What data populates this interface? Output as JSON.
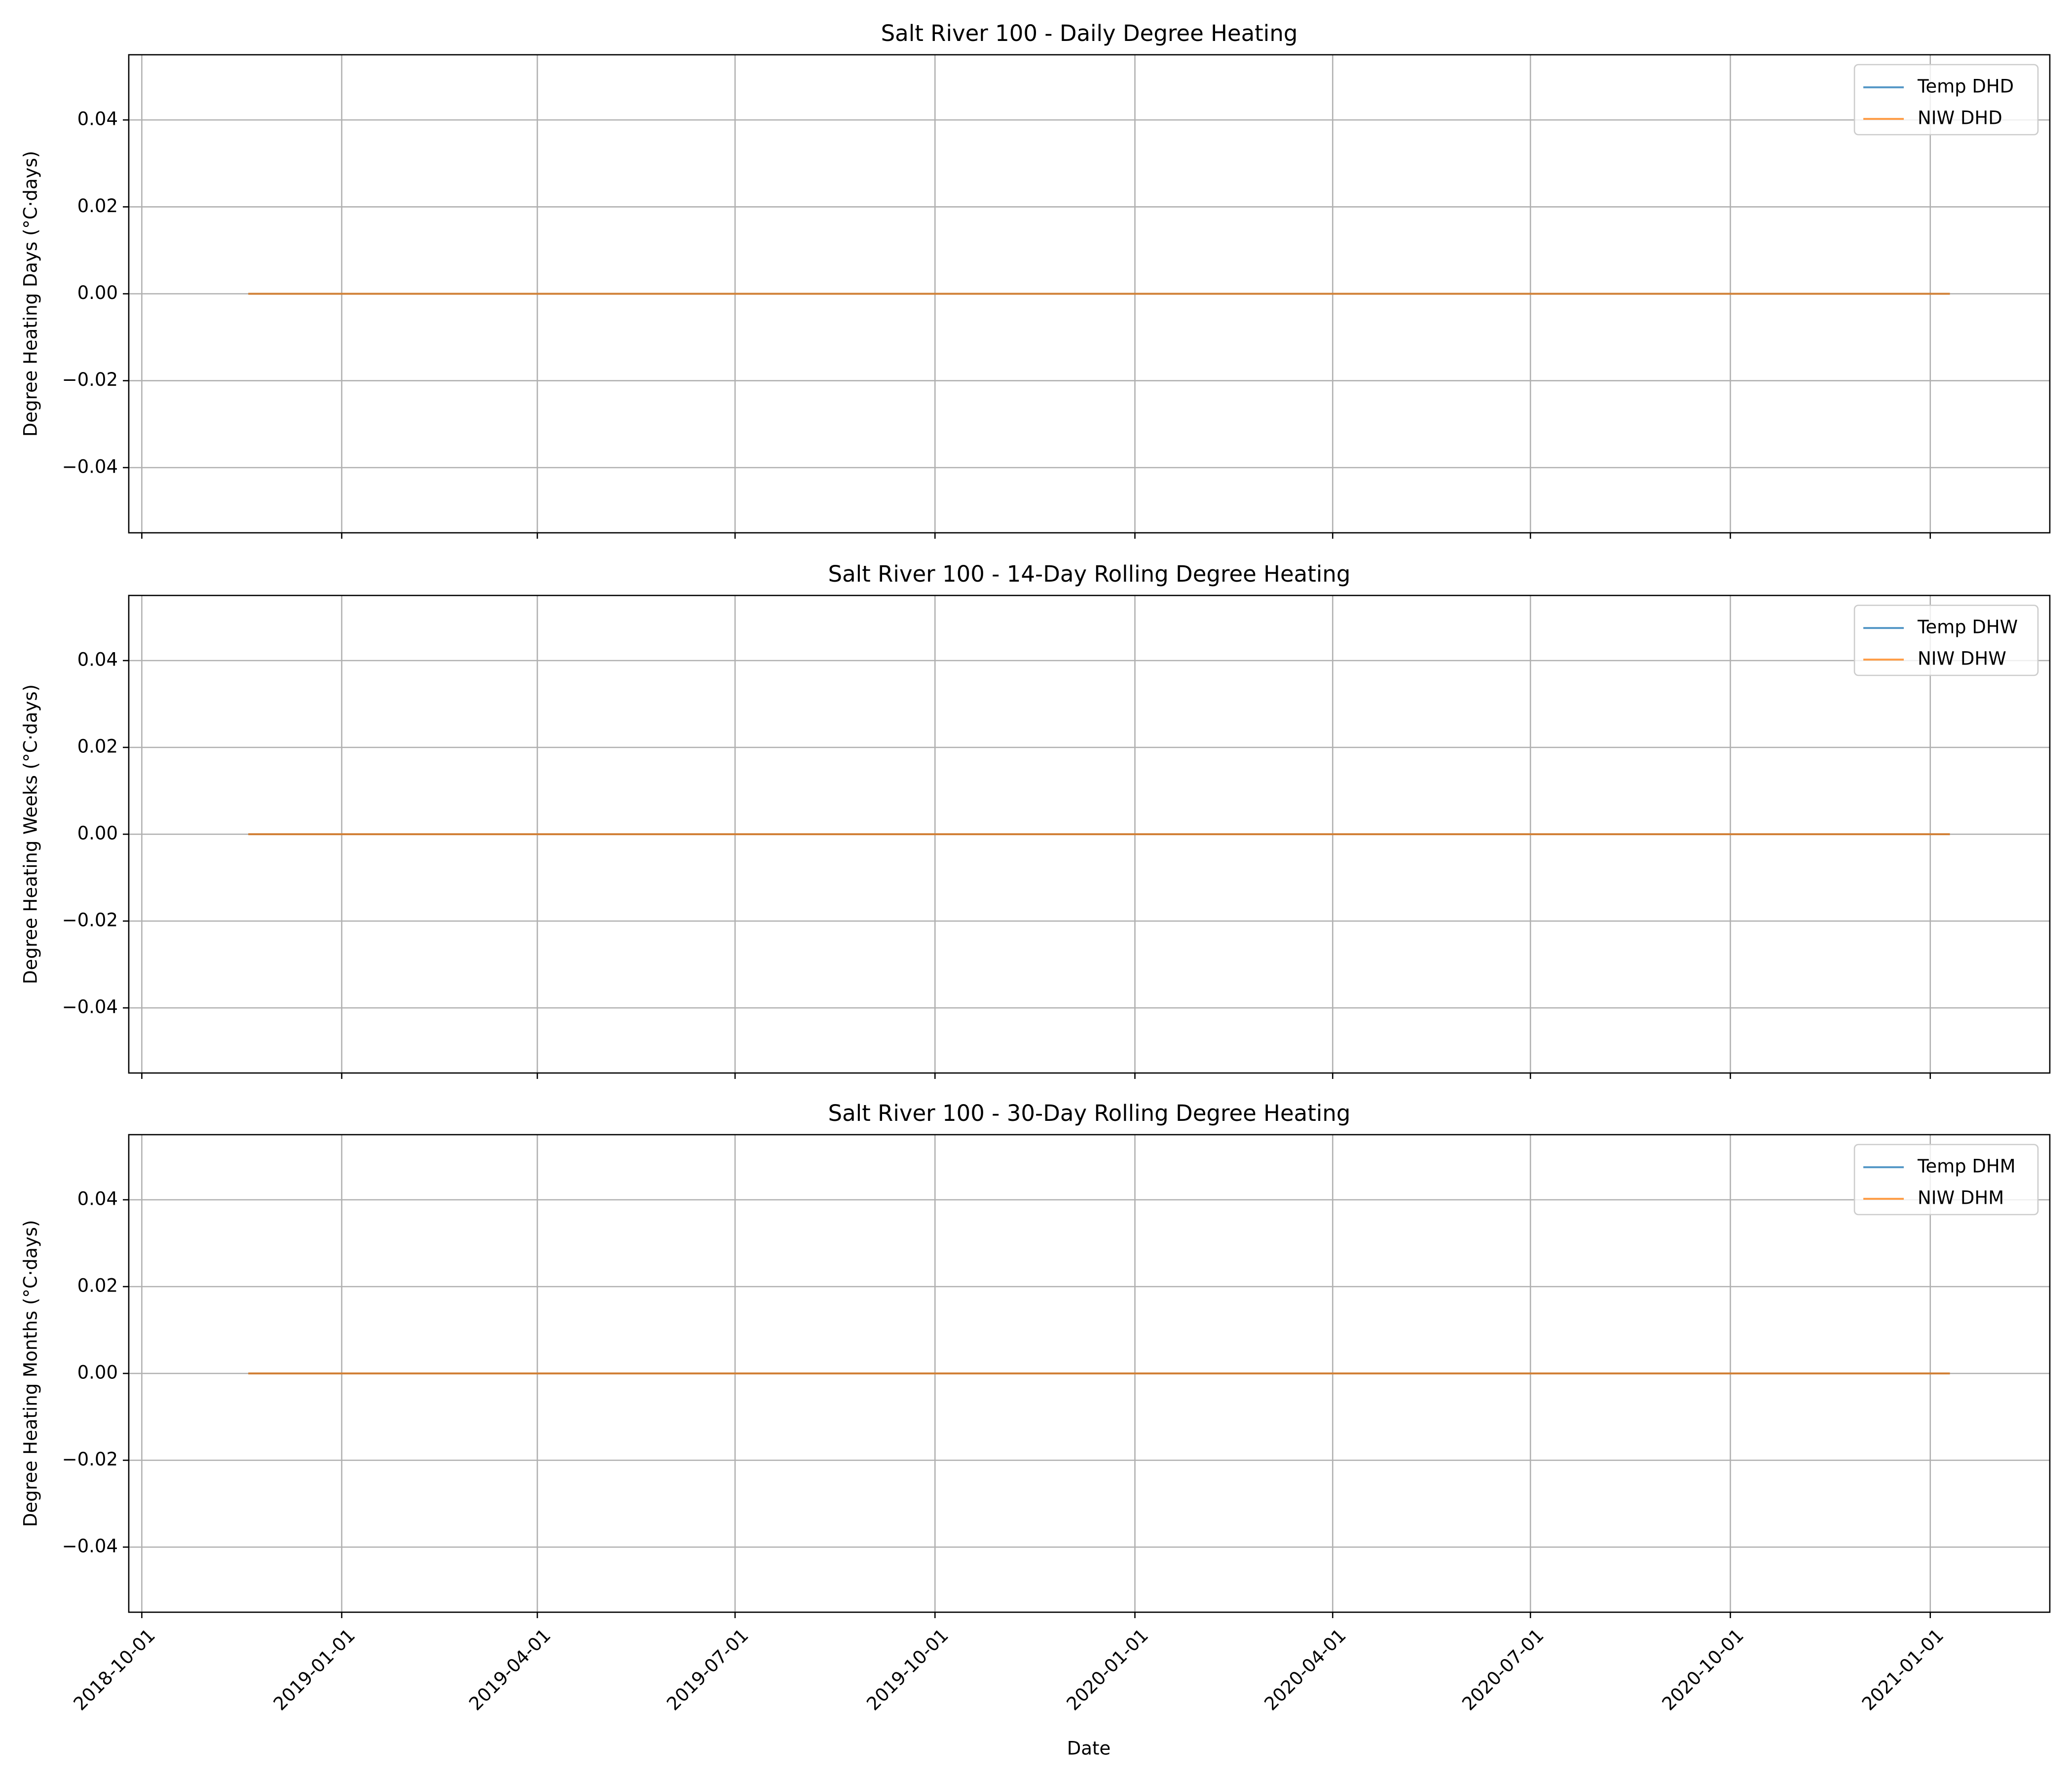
{
  "figure": {
    "xlabel": "Date",
    "x_tick_labels": [
      "2018-10-01",
      "2019-01-01",
      "2019-04-01",
      "2019-07-01",
      "2019-10-01",
      "2020-01-01",
      "2020-04-01",
      "2020-07-01",
      "2020-10-01",
      "2021-01-01"
    ],
    "y_tick_labels": [
      "0.04",
      "0.02",
      "0.00",
      "−0.02",
      "−0.04"
    ]
  },
  "colors": {
    "temp": "#1f77b4",
    "niw": "#ff7f0e",
    "grid": "#b0b0b0",
    "axes": "#000000"
  },
  "chart_data": [
    {
      "type": "line",
      "title": "Salt River 100 - Daily Degree Heating",
      "ylabel": "Degree Heating Days (°C·days)",
      "xlabel": "",
      "xlim": [
        "2018-09-25",
        "2021-02-25"
      ],
      "ylim": [
        -0.055,
        0.055
      ],
      "x_ticks": [
        "2018-10-01",
        "2019-01-01",
        "2019-04-01",
        "2019-07-01",
        "2019-10-01",
        "2020-01-01",
        "2020-04-01",
        "2020-07-01",
        "2020-10-01",
        "2021-01-01"
      ],
      "y_ticks": [
        0.04,
        0.02,
        0.0,
        -0.02,
        -0.04
      ],
      "grid": true,
      "legend_position": "top-right",
      "series": [
        {
          "name": "Temp DHD",
          "color": "#1f77b4",
          "x": [
            "2018-11-19",
            "2021-01-10"
          ],
          "y": [
            0,
            0
          ]
        },
        {
          "name": "NIW DHD",
          "color": "#ff7f0e",
          "x": [
            "2018-11-19",
            "2021-01-10"
          ],
          "y": [
            0,
            0
          ]
        }
      ]
    },
    {
      "type": "line",
      "title": "Salt River 100 - 14-Day Rolling Degree Heating",
      "ylabel": "Degree Heating Weeks (°C·days)",
      "xlabel": "",
      "xlim": [
        "2018-09-25",
        "2021-02-25"
      ],
      "ylim": [
        -0.055,
        0.055
      ],
      "x_ticks": [
        "2018-10-01",
        "2019-01-01",
        "2019-04-01",
        "2019-07-01",
        "2019-10-01",
        "2020-01-01",
        "2020-04-01",
        "2020-07-01",
        "2020-10-01",
        "2021-01-01"
      ],
      "y_ticks": [
        0.04,
        0.02,
        0.0,
        -0.02,
        -0.04
      ],
      "grid": true,
      "legend_position": "top-right",
      "series": [
        {
          "name": "Temp DHW",
          "color": "#1f77b4",
          "x": [
            "2018-11-19",
            "2021-01-10"
          ],
          "y": [
            0,
            0
          ]
        },
        {
          "name": "NIW DHW",
          "color": "#ff7f0e",
          "x": [
            "2018-11-19",
            "2021-01-10"
          ],
          "y": [
            0,
            0
          ]
        }
      ]
    },
    {
      "type": "line",
      "title": "Salt River 100 - 30-Day Rolling Degree Heating",
      "ylabel": "Degree Heating Months (°C·days)",
      "xlabel": "Date",
      "xlim": [
        "2018-09-25",
        "2021-02-25"
      ],
      "ylim": [
        -0.055,
        0.055
      ],
      "x_ticks": [
        "2018-10-01",
        "2019-01-01",
        "2019-04-01",
        "2019-07-01",
        "2019-10-01",
        "2020-01-01",
        "2020-04-01",
        "2020-07-01",
        "2020-10-01",
        "2021-01-01"
      ],
      "y_ticks": [
        0.04,
        0.02,
        0.0,
        -0.02,
        -0.04
      ],
      "grid": true,
      "legend_position": "top-right",
      "series": [
        {
          "name": "Temp DHM",
          "color": "#1f77b4",
          "x": [
            "2018-11-19",
            "2021-01-10"
          ],
          "y": [
            0,
            0
          ]
        },
        {
          "name": "NIW DHM",
          "color": "#ff7f0e",
          "x": [
            "2018-11-19",
            "2021-01-10"
          ],
          "y": [
            0,
            0
          ]
        }
      ]
    }
  ]
}
